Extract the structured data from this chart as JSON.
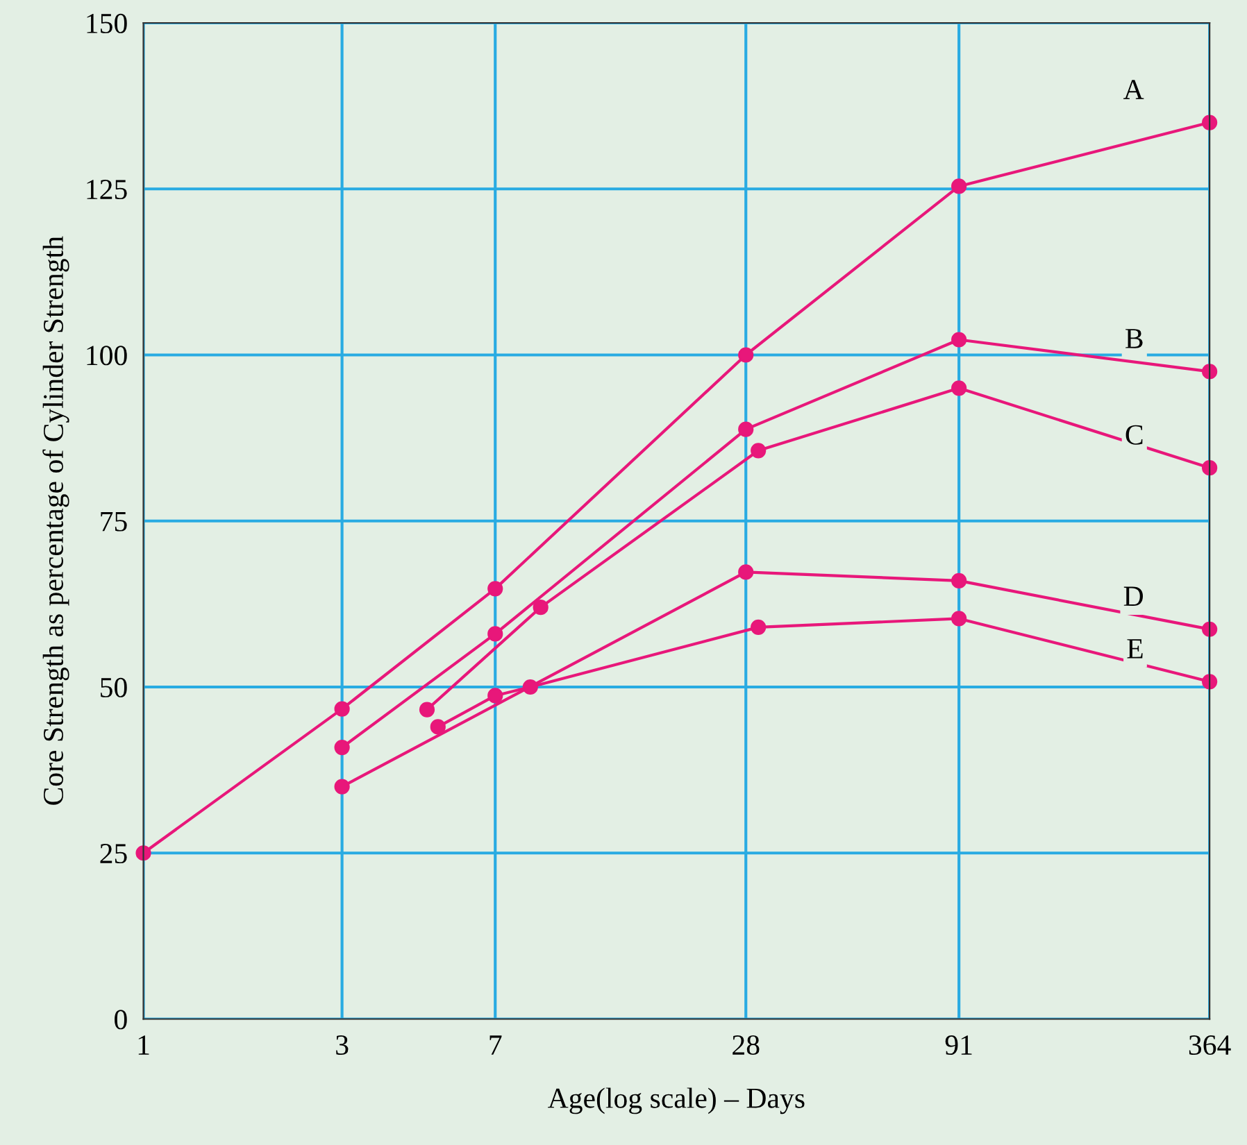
{
  "chart_data": {
    "type": "line",
    "xlabel": "Age(log scale) – Days",
    "ylabel": "Core Strength as percentage of Cylinder Strength",
    "log": "x",
    "xlim": [
      1,
      364
    ],
    "xticks": [
      1,
      3,
      7,
      28,
      91,
      364
    ],
    "ylim": [
      0,
      150
    ],
    "yticks": [
      0,
      25,
      50,
      75,
      100,
      125,
      150
    ],
    "grid": true,
    "legend": false,
    "marker": "circle",
    "line_style": "solid",
    "series": [
      {
        "name": "A",
        "color": "#e8177a",
        "x": [
          1,
          3,
          7,
          28,
          91,
          364
        ],
        "values": [
          25,
          46.7,
          64.8,
          100,
          125.4,
          135
        ]
      },
      {
        "name": "B",
        "color": "#e8177a",
        "x": [
          3,
          7,
          28,
          91,
          364
        ],
        "values": [
          40.9,
          58,
          88.8,
          102.3,
          97.5
        ]
      },
      {
        "name": "C",
        "color": "#e8177a",
        "x": [
          4.8,
          9,
          30,
          91,
          364
        ],
        "values": [
          46.6,
          62,
          85.6,
          95,
          83
        ]
      },
      {
        "name": "D",
        "color": "#e8177a",
        "x": [
          3,
          28,
          91,
          364
        ],
        "values": [
          35,
          67.3,
          66,
          58.7
        ]
      },
      {
        "name": "E",
        "color": "#e8177a",
        "x": [
          5.1,
          7,
          8.5,
          30,
          91,
          364
        ],
        "values": [
          44,
          48.7,
          50,
          59,
          60.3,
          50.8
        ]
      }
    ]
  }
}
